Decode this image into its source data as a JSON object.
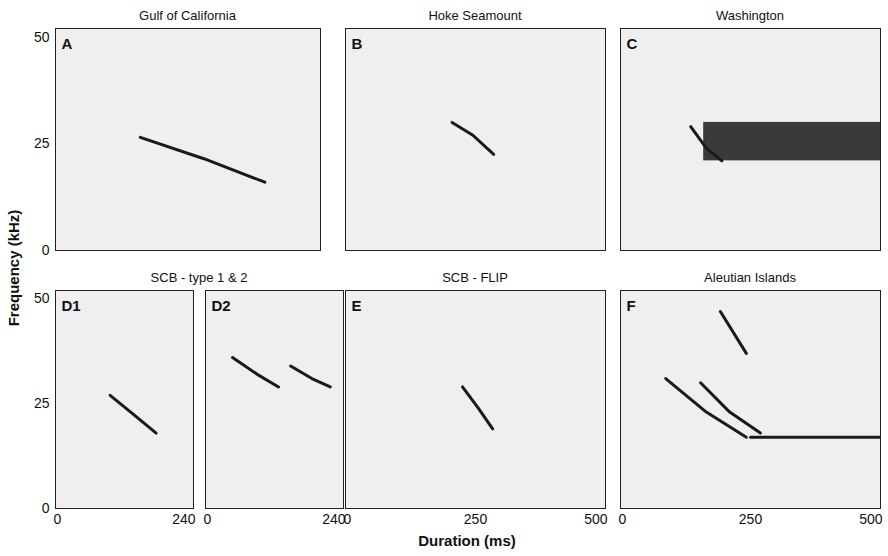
{
  "xlabel": "Duration (ms)",
  "ylabel": "Frequency (kHz)",
  "chart_data": [
    {
      "type": "line",
      "panel": "A",
      "title": "Gulf of California",
      "xlim": [
        0,
        500
      ],
      "ylim": [
        0,
        52
      ],
      "yticks": [
        0,
        25,
        50
      ],
      "tick_labels": "y",
      "color": "#1a1a1a",
      "series": [
        {
          "x": [
            160,
            280,
            395
          ],
          "values": [
            26.5,
            21.5,
            16
          ]
        }
      ]
    },
    {
      "type": "line",
      "panel": "B",
      "title": "Hoke Seamount",
      "xlim": [
        0,
        500
      ],
      "ylim": [
        0,
        52
      ],
      "tick_labels": false,
      "color": "#1a1a1a",
      "series": [
        {
          "x": [
            205,
            245,
            285
          ],
          "values": [
            30,
            27,
            22.5
          ]
        }
      ]
    },
    {
      "type": "line",
      "panel": "C",
      "title": "Washington",
      "xlim": [
        0,
        500
      ],
      "ylim": [
        0,
        52
      ],
      "tick_labels": false,
      "color": "#1a1a1a",
      "series": [
        {
          "x": [
            135,
            165,
            195
          ],
          "values": [
            29,
            24,
            21
          ]
        }
      ],
      "band": {
        "x": [
          160,
          500
        ],
        "y": [
          21,
          30
        ]
      }
    },
    {
      "type": "line",
      "panel": "D1",
      "title": "SCB - type 1 & 2",
      "xlim": [
        0,
        240
      ],
      "ylim": [
        0,
        52
      ],
      "xticks": [
        0,
        240
      ],
      "yticks": [
        0,
        25,
        50
      ],
      "tick_labels": true,
      "color": "#1a1a1a",
      "series": [
        {
          "x": [
            95,
            135,
            175
          ],
          "values": [
            27,
            22.5,
            18
          ]
        }
      ]
    },
    {
      "type": "line",
      "panel": "D2",
      "xlim": [
        0,
        240
      ],
      "ylim": [
        0,
        52
      ],
      "xticks": [
        0,
        240
      ],
      "tick_labels": "x",
      "color": "#1a1a1a",
      "series": [
        {
          "x": [
            47,
            90,
            127
          ],
          "values": [
            36,
            32,
            29
          ]
        },
        {
          "x": [
            148,
            185,
            217
          ],
          "values": [
            34,
            31,
            29
          ]
        }
      ]
    },
    {
      "type": "line",
      "panel": "E",
      "title": "SCB - FLIP",
      "xlim": [
        0,
        500
      ],
      "ylim": [
        0,
        52
      ],
      "xticks": [
        0,
        250,
        500
      ],
      "tick_labels": "x",
      "color": "#1a1a1a",
      "series": [
        {
          "x": [
            225,
            255,
            283
          ],
          "values": [
            29,
            24,
            19
          ]
        }
      ]
    },
    {
      "type": "line",
      "panel": "F",
      "title": "Aleutian Islands",
      "xlim": [
        0,
        500
      ],
      "ylim": [
        0,
        52
      ],
      "xticks": [
        0,
        250,
        500
      ],
      "tick_labels": "x",
      "color": "#1a1a1a",
      "series": [
        {
          "x": [
            87,
            165,
            242
          ],
          "values": [
            31,
            23,
            17
          ]
        },
        {
          "x": [
            154,
            210,
            269
          ],
          "values": [
            30,
            23,
            18
          ]
        },
        {
          "x": [
            250,
            500
          ],
          "values": [
            17,
            17
          ]
        },
        {
          "x": [
            192,
            242
          ],
          "values": [
            47,
            37
          ]
        }
      ]
    }
  ]
}
